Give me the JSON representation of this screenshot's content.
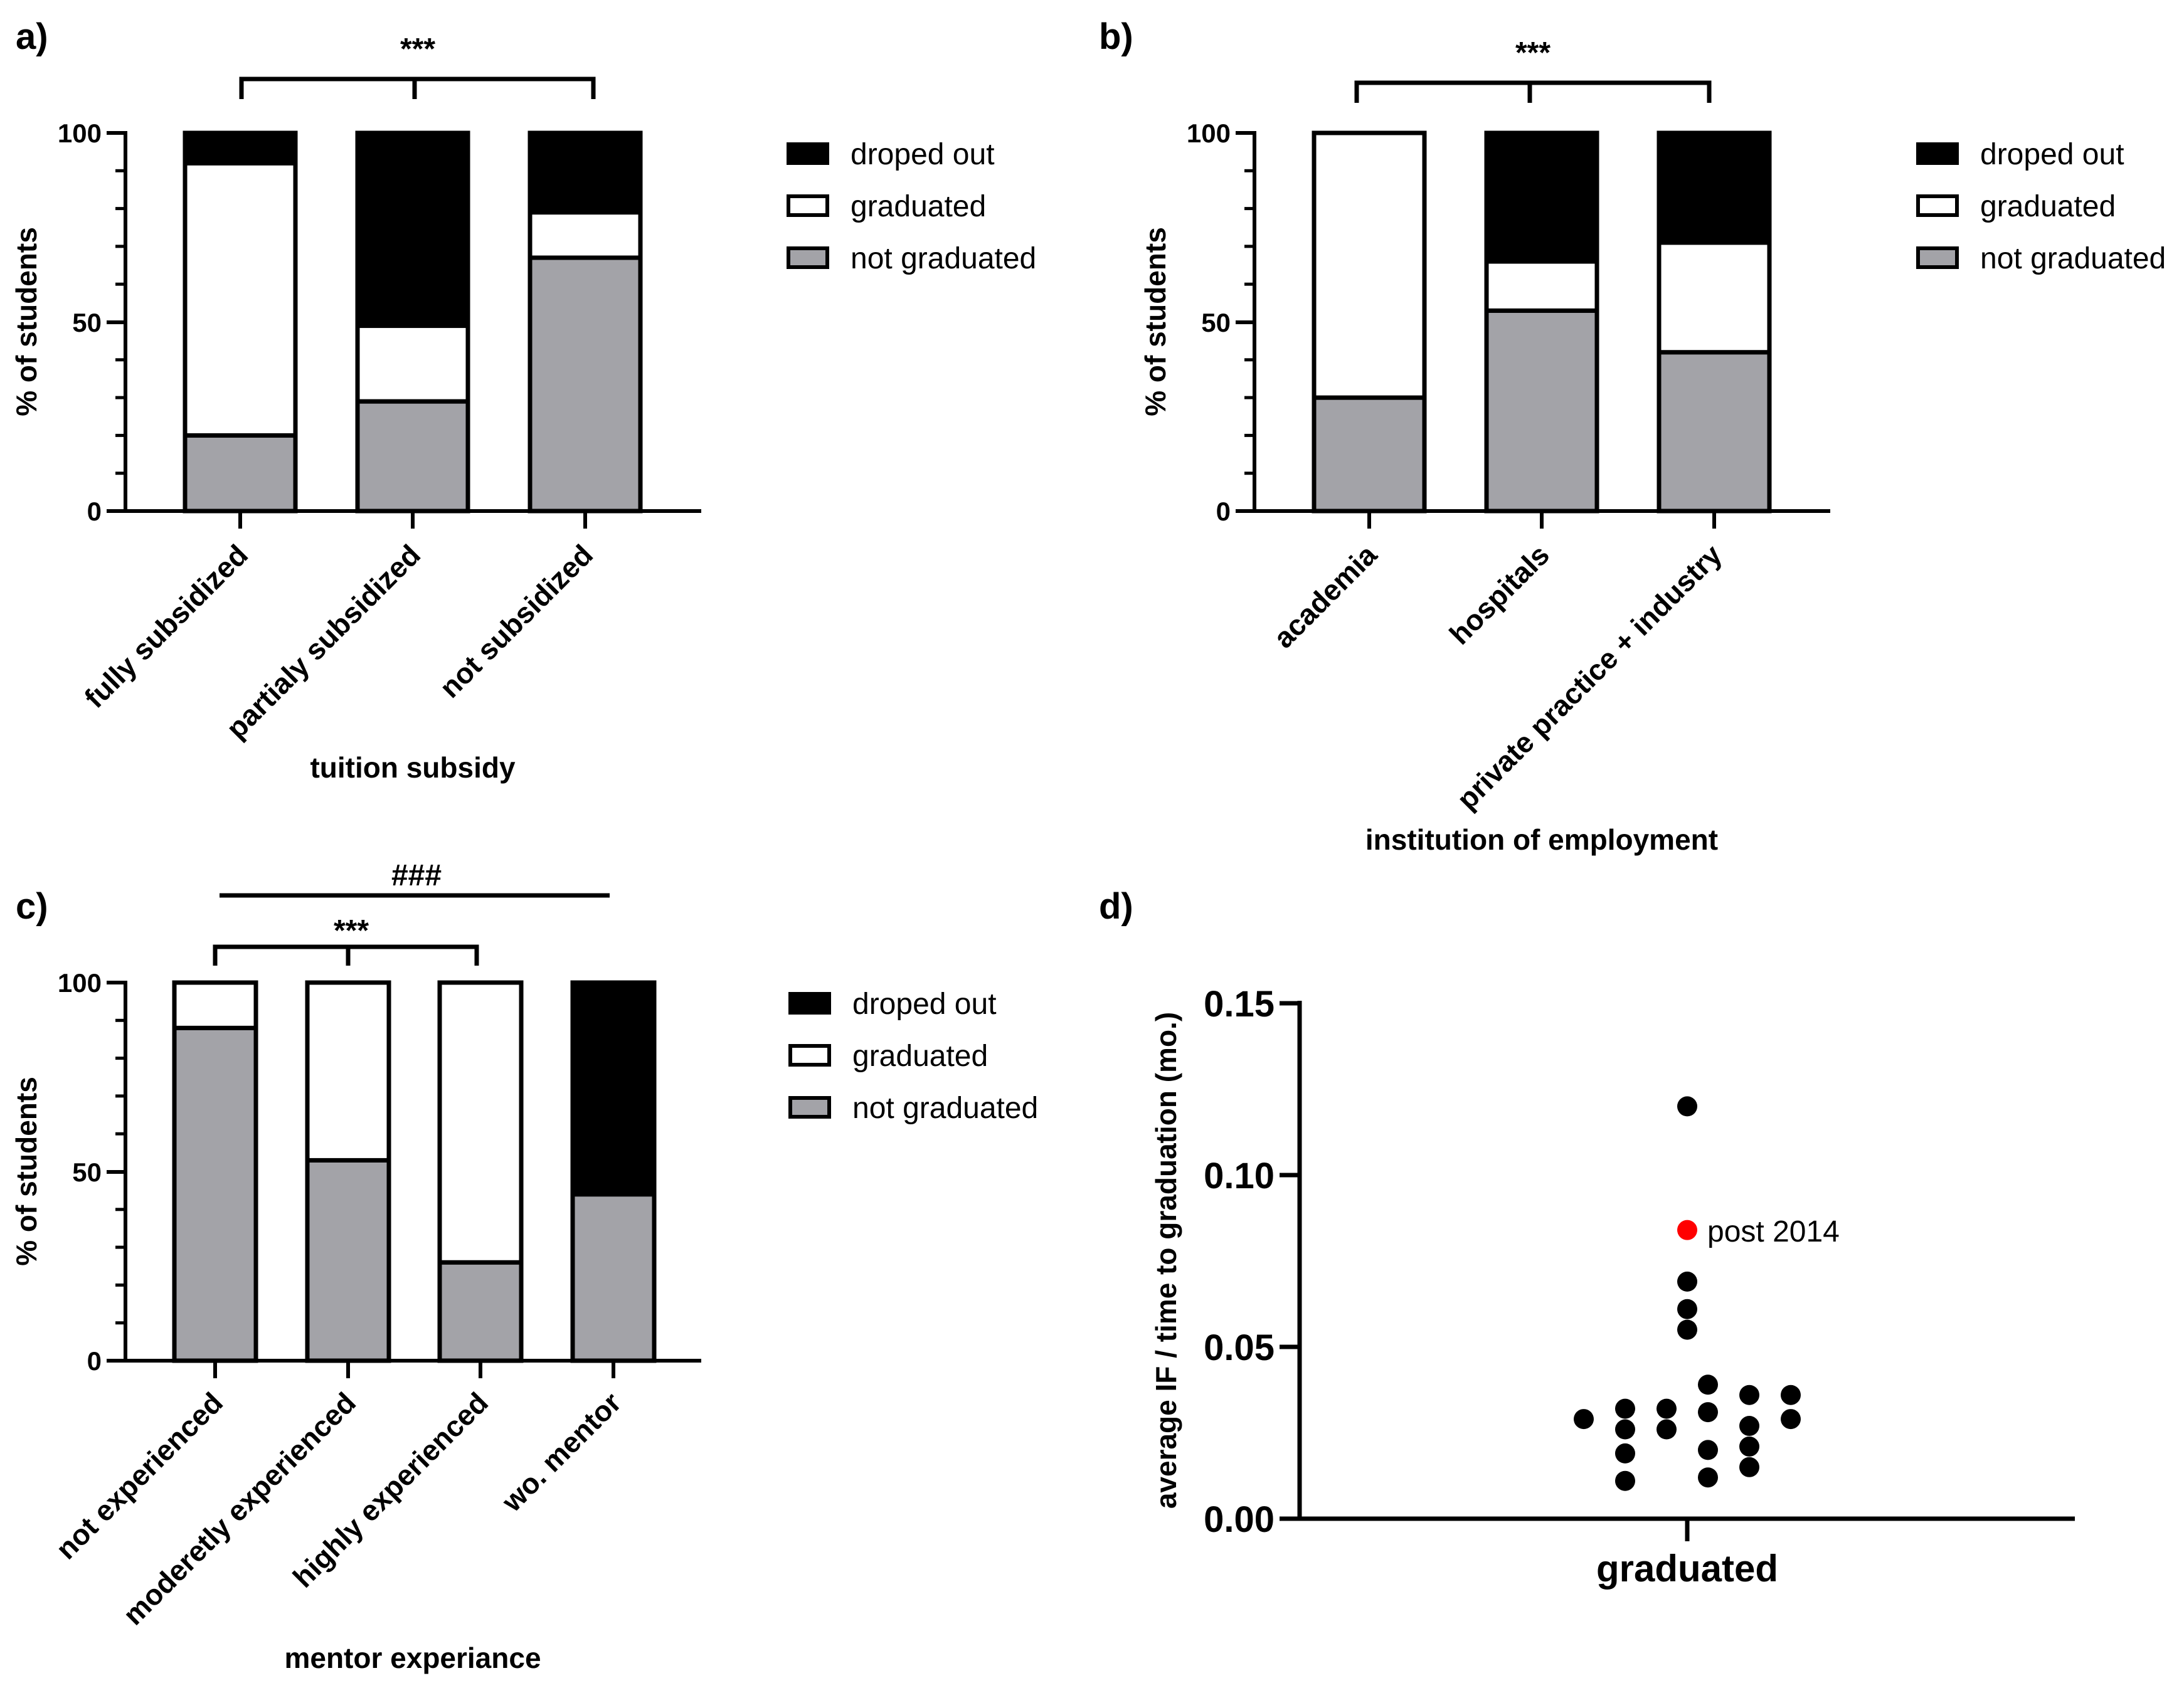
{
  "figure": {
    "panel_labels": [
      "a)",
      "b)",
      "c)",
      "d)"
    ]
  },
  "legend": {
    "droped_out": "droped out",
    "graduated": "graduated",
    "not_graduated": "not graduated"
  },
  "colors": {
    "droped_out": "#000000",
    "graduated": "#ffffff",
    "not_graduated": "#a3a3a8",
    "highlight": "#ff0000"
  },
  "chart_data": [
    {
      "panel": "a)",
      "type": "bar",
      "stacked": true,
      "categories": [
        "fully subsidized",
        "partialy subsidized",
        "not subsidized"
      ],
      "series": [
        {
          "name": "not graduated",
          "values": [
            20,
            29,
            67
          ]
        },
        {
          "name": "graduated",
          "values": [
            72,
            20,
            12
          ]
        },
        {
          "name": "droped out",
          "values": [
            8,
            51,
            21
          ]
        }
      ],
      "xlabel": "tuition subsidy",
      "ylabel": "% of students",
      "ylim": [
        0,
        100
      ],
      "yticks": [
        "0",
        "50",
        "100"
      ],
      "significance": [
        {
          "label": "***"
        }
      ]
    },
    {
      "panel": "b)",
      "type": "bar",
      "stacked": true,
      "categories": [
        "academia",
        "hospitals",
        "private practice + industry"
      ],
      "series": [
        {
          "name": "not graduated",
          "values": [
            30,
            53,
            42
          ]
        },
        {
          "name": "graduated",
          "values": [
            70,
            13,
            29
          ]
        },
        {
          "name": "droped out",
          "values": [
            0,
            34,
            29
          ]
        }
      ],
      "xlabel": "institution of employment",
      "ylabel": "% of students",
      "ylim": [
        0,
        100
      ],
      "yticks": [
        "0",
        "50",
        "100"
      ],
      "significance": [
        {
          "label": "***"
        }
      ]
    },
    {
      "panel": "c)",
      "type": "bar",
      "stacked": true,
      "categories": [
        "not experienced",
        "moderetly experienced",
        "highly experienced",
        "wo. mentor"
      ],
      "series": [
        {
          "name": "not graduated",
          "values": [
            88,
            53,
            26,
            44
          ]
        },
        {
          "name": "graduated",
          "values": [
            12,
            47,
            74,
            0
          ]
        },
        {
          "name": "droped out",
          "values": [
            0,
            0,
            0,
            56
          ]
        }
      ],
      "xlabel": "mentor experiance",
      "ylabel": "% of students",
      "ylim": [
        0,
        100
      ],
      "yticks": [
        "0",
        "50",
        "100"
      ],
      "significance": [
        {
          "label": "###"
        },
        {
          "label": "***"
        }
      ]
    },
    {
      "panel": "d)",
      "type": "scatter",
      "category": "graduated",
      "ylabel": "average IF / time to graduation (mo.)",
      "ylim": [
        0,
        0.15
      ],
      "yticks": [
        "0.00",
        "0.05",
        "0.10",
        "0.15"
      ],
      "points": [
        {
          "dx": 0,
          "y": 0.12
        },
        {
          "dx": 0,
          "y": 0.069
        },
        {
          "dx": 0,
          "y": 0.061
        },
        {
          "dx": 0,
          "y": 0.055
        },
        {
          "dx": -2.5,
          "y": 0.029
        },
        {
          "dx": -1.5,
          "y": 0.032
        },
        {
          "dx": -1.5,
          "y": 0.026
        },
        {
          "dx": -1.5,
          "y": 0.019
        },
        {
          "dx": -1.5,
          "y": 0.011
        },
        {
          "dx": -0.5,
          "y": 0.032
        },
        {
          "dx": -0.5,
          "y": 0.026
        },
        {
          "dx": 0.5,
          "y": 0.039
        },
        {
          "dx": 0.5,
          "y": 0.031
        },
        {
          "dx": 0.5,
          "y": 0.02
        },
        {
          "dx": 0.5,
          "y": 0.012
        },
        {
          "dx": 1.5,
          "y": 0.036
        },
        {
          "dx": 1.5,
          "y": 0.027
        },
        {
          "dx": 1.5,
          "y": 0.021
        },
        {
          "dx": 1.5,
          "y": 0.015
        },
        {
          "dx": 2.5,
          "y": 0.036
        },
        {
          "dx": 2.5,
          "y": 0.029
        }
      ],
      "highlight": {
        "dx": 0,
        "y": 0.084,
        "label": "post 2014"
      }
    }
  ]
}
